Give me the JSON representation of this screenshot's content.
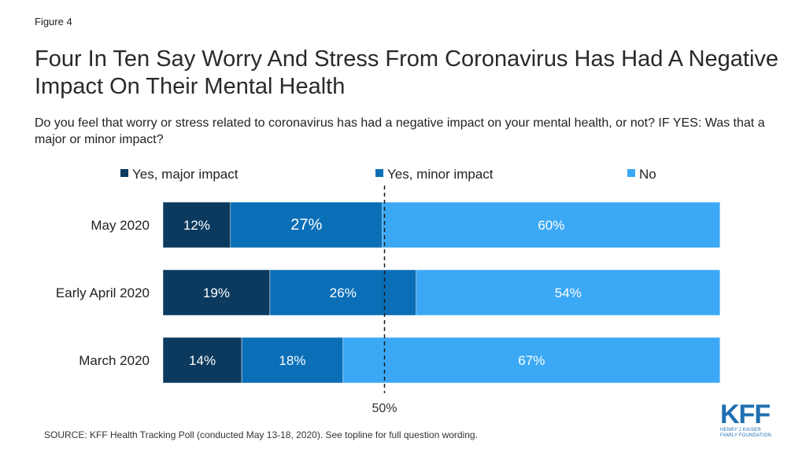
{
  "figure_label": "Figure 4",
  "title": "Four In Ten Say Worry And Stress From Coronavirus Has Had A Negative Impact On Their Mental Health",
  "subtitle": "Do you feel that worry or stress related to coronavirus has had a negative impact on your mental health, or not? IF YES: Was that a major or minor impact?",
  "source": "SOURCE: KFF Health Tracking Poll (conducted May 13-18, 2020). See topline for full question wording.",
  "logo": {
    "main": "KFF",
    "line1": "HENRY J KAISER",
    "line2": "FAMILY FOUNDATION"
  },
  "colors": {
    "major": "#0b3a5e",
    "minor": "#0b6fb8",
    "no": "#3ba8f5",
    "text_light": "#ffffff",
    "reference_line": "#1a1a1a"
  },
  "chart_data": {
    "type": "bar",
    "orientation": "horizontal",
    "stacked": true,
    "categories": [
      "May 2020",
      "Early April 2020",
      "March 2020"
    ],
    "series": [
      {
        "name": "Yes, major impact",
        "values": [
          12,
          19,
          14
        ],
        "labels": [
          "12%",
          "19%",
          "14%"
        ]
      },
      {
        "name": "Yes, minor impact",
        "values": [
          27,
          26,
          18
        ],
        "labels": [
          "27%",
          "26%",
          "18%"
        ]
      },
      {
        "name": "No",
        "values": [
          60,
          54,
          67
        ],
        "labels": [
          "60%",
          "54%",
          "67%"
        ]
      }
    ],
    "xlim": [
      0,
      100
    ],
    "reference_line": {
      "value": 50,
      "label": "50%"
    },
    "legend": "top",
    "grid": false
  }
}
